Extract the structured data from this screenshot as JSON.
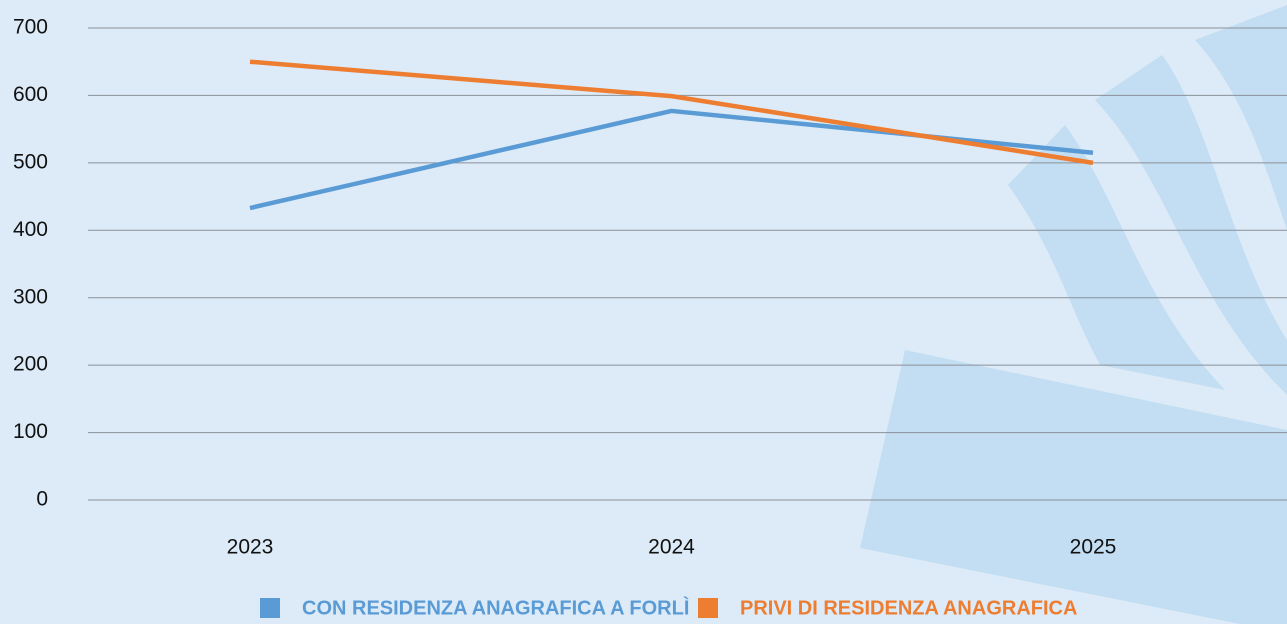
{
  "chart_data": {
    "type": "line",
    "categories": [
      "2023",
      "2024",
      "2025"
    ],
    "series": [
      {
        "name": "CON RESIDENZA ANAGRAFICA A FORLÌ",
        "color": "#5b9bd5",
        "values": [
          433,
          577,
          515
        ]
      },
      {
        "name": "PRIVI DI RESIDENZA ANAGRAFICA",
        "color": "#ed7d31",
        "values": [
          650,
          599,
          500
        ]
      }
    ],
    "ylim": [
      0,
      700
    ],
    "yticks": [
      0,
      100,
      200,
      300,
      400,
      500,
      600,
      700
    ],
    "grid": true,
    "legend": "bottom"
  }
}
